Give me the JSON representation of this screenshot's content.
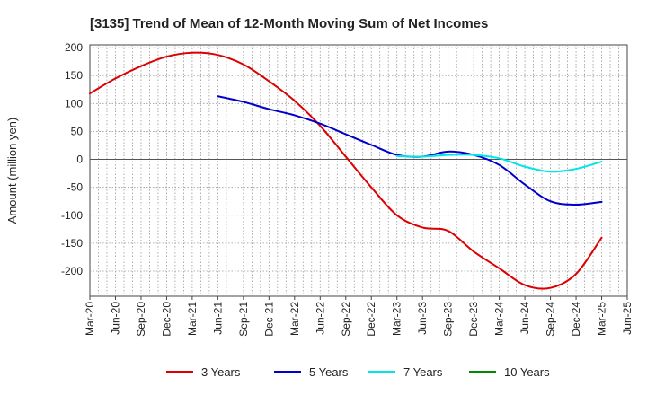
{
  "chart_data": {
    "type": "line",
    "title": "[3135]  Trend of Mean of 12-Month Moving Sum of Net Incomes",
    "ylabel": "Amount (million yen)",
    "xlabel": "",
    "ylim": [
      -245,
      205
    ],
    "yticks": [
      200,
      150,
      100,
      50,
      0,
      -50,
      -100,
      -150,
      -200
    ],
    "xticks": [
      "Mar-20",
      "Jun-20",
      "Sep-20",
      "Dec-20",
      "Mar-21",
      "Jun-21",
      "Sep-21",
      "Dec-21",
      "Mar-22",
      "Jun-22",
      "Sep-22",
      "Dec-22",
      "Mar-23",
      "Jun-23",
      "Sep-23",
      "Dec-23",
      "Mar-24",
      "Jun-24",
      "Sep-24",
      "Dec-24",
      "Mar-25",
      "Jun-25"
    ],
    "grid": true,
    "legend_position": "bottom",
    "series": [
      {
        "name": "3 Years",
        "color": "#dd0000",
        "x": [
          "2020-03",
          "2020-06",
          "2020-09",
          "2020-12",
          "2021-03",
          "2021-06",
          "2021-09",
          "2021-12",
          "2022-03",
          "2022-06",
          "2022-09",
          "2022-12",
          "2023-03",
          "2023-06",
          "2023-09",
          "2023-12",
          "2024-03",
          "2024-06",
          "2024-09",
          "2024-12",
          "2025-03"
        ],
        "values": [
          118,
          145,
          167,
          184,
          191,
          187,
          170,
          140,
          105,
          60,
          5,
          -50,
          -100,
          -122,
          -128,
          -165,
          -195,
          -225,
          -230,
          -205,
          -140
        ]
      },
      {
        "name": "5 Years",
        "color": "#0000cc",
        "x": [
          "2021-06",
          "2021-09",
          "2021-12",
          "2022-03",
          "2022-06",
          "2022-09",
          "2022-12",
          "2023-03",
          "2023-06",
          "2023-09",
          "2023-12",
          "2024-03",
          "2024-06",
          "2024-09",
          "2024-12",
          "2025-03"
        ],
        "values": [
          113,
          103,
          90,
          79,
          64,
          45,
          26,
          8,
          5,
          14,
          8,
          -10,
          -45,
          -75,
          -81,
          -76
        ]
      },
      {
        "name": "7 Years",
        "color": "#00e5e5",
        "x": [
          "2023-03",
          "2023-06",
          "2023-09",
          "2023-12",
          "2024-03",
          "2024-06",
          "2024-09",
          "2024-12",
          "2025-03"
        ],
        "values": [
          6,
          5,
          8,
          8,
          2,
          -13,
          -22,
          -17,
          -4
        ]
      },
      {
        "name": "10 Years",
        "color": "#008800",
        "x": [],
        "values": []
      }
    ]
  }
}
